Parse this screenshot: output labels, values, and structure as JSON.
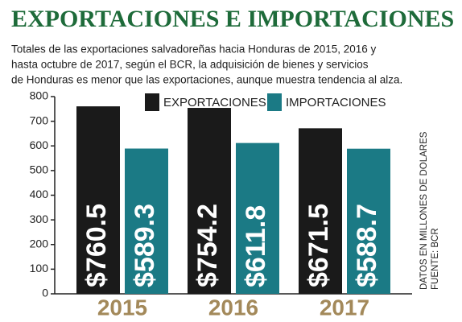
{
  "chart_data": {
    "type": "bar",
    "title": "EXPORTACIONES E IMPORTACIONES",
    "subtitle": [
      "Totales de las exportaciones salvadoreñas hacia Honduras de 2015, 2016 y",
      "hasta octubre de 2017, según el BCR, la adquisición de bienes y servicios",
      "de Honduras es menor que las exportaciones, aunque muestra tendencia al alza."
    ],
    "categories": [
      "2015",
      "2016",
      "2017"
    ],
    "series": [
      {
        "name": "EXPORTACIONES",
        "color": "#1a1a1a",
        "values": [
          760.5,
          754.2,
          671.5
        ],
        "value_labels": [
          "$760.5",
          "$754.2",
          "$671.5"
        ]
      },
      {
        "name": "IMPORTACIONES",
        "color": "#1b7a85",
        "values": [
          589.3,
          611.8,
          588.7
        ],
        "value_labels": [
          "$589.3",
          "$611.8",
          "$588.7"
        ]
      }
    ],
    "ylim": [
      0,
      800
    ],
    "yticks": [
      0,
      100,
      200,
      300,
      400,
      500,
      600,
      700,
      800
    ],
    "annotations": [
      "DATOS EN MILLONES DE DOLARES",
      "FUENTE: BCR"
    ]
  }
}
